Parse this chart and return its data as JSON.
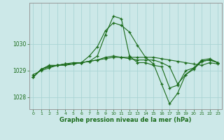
{
  "xlabel": "Graphe pression niveau de la mer (hPa)",
  "background_color": "#cce8e8",
  "grid_color": "#aad4d4",
  "line_color": "#1a6b1a",
  "xlim": [
    -0.5,
    23.5
  ],
  "ylim": [
    1027.55,
    1031.55
  ],
  "yticks": [
    1028,
    1029,
    1030
  ],
  "xticks": [
    0,
    1,
    2,
    3,
    4,
    5,
    6,
    7,
    8,
    9,
    10,
    11,
    12,
    13,
    14,
    15,
    16,
    17,
    18,
    19,
    20,
    21,
    22,
    23
  ],
  "series": [
    [
      1028.85,
      1029.0,
      1029.1,
      1029.2,
      1029.2,
      1029.25,
      1029.3,
      1029.35,
      1029.4,
      1029.45,
      1029.5,
      1029.5,
      1029.5,
      1029.5,
      1029.5,
      1029.5,
      1029.45,
      1029.4,
      1029.35,
      1029.3,
      1029.25,
      1029.2,
      1029.3,
      1029.25
    ],
    [
      1028.75,
      1029.05,
      1029.15,
      1029.2,
      1029.25,
      1029.25,
      1029.3,
      1029.55,
      1029.9,
      1030.5,
      1030.8,
      1030.7,
      1030.45,
      1029.95,
      1029.5,
      1029.25,
      1028.5,
      1027.75,
      1028.15,
      1028.85,
      1029.05,
      1029.35,
      1029.4,
      1029.3
    ],
    [
      1028.75,
      1029.05,
      1029.2,
      1029.2,
      1029.25,
      1029.3,
      1029.3,
      1029.35,
      1029.55,
      1030.35,
      1031.05,
      1030.95,
      1029.55,
      1029.3,
      1029.3,
      1029.2,
      1029.15,
      1028.35,
      1028.45,
      1029.0,
      1029.1,
      1029.4,
      1029.45,
      1029.3
    ],
    [
      1028.75,
      1029.05,
      1029.15,
      1029.2,
      1029.25,
      1029.25,
      1029.3,
      1029.35,
      1029.4,
      1029.5,
      1029.55,
      1029.5,
      1029.45,
      1029.4,
      1029.4,
      1029.4,
      1029.3,
      1029.15,
      1028.5,
      1028.85,
      1029.1,
      1029.35,
      1029.4,
      1029.3
    ]
  ]
}
